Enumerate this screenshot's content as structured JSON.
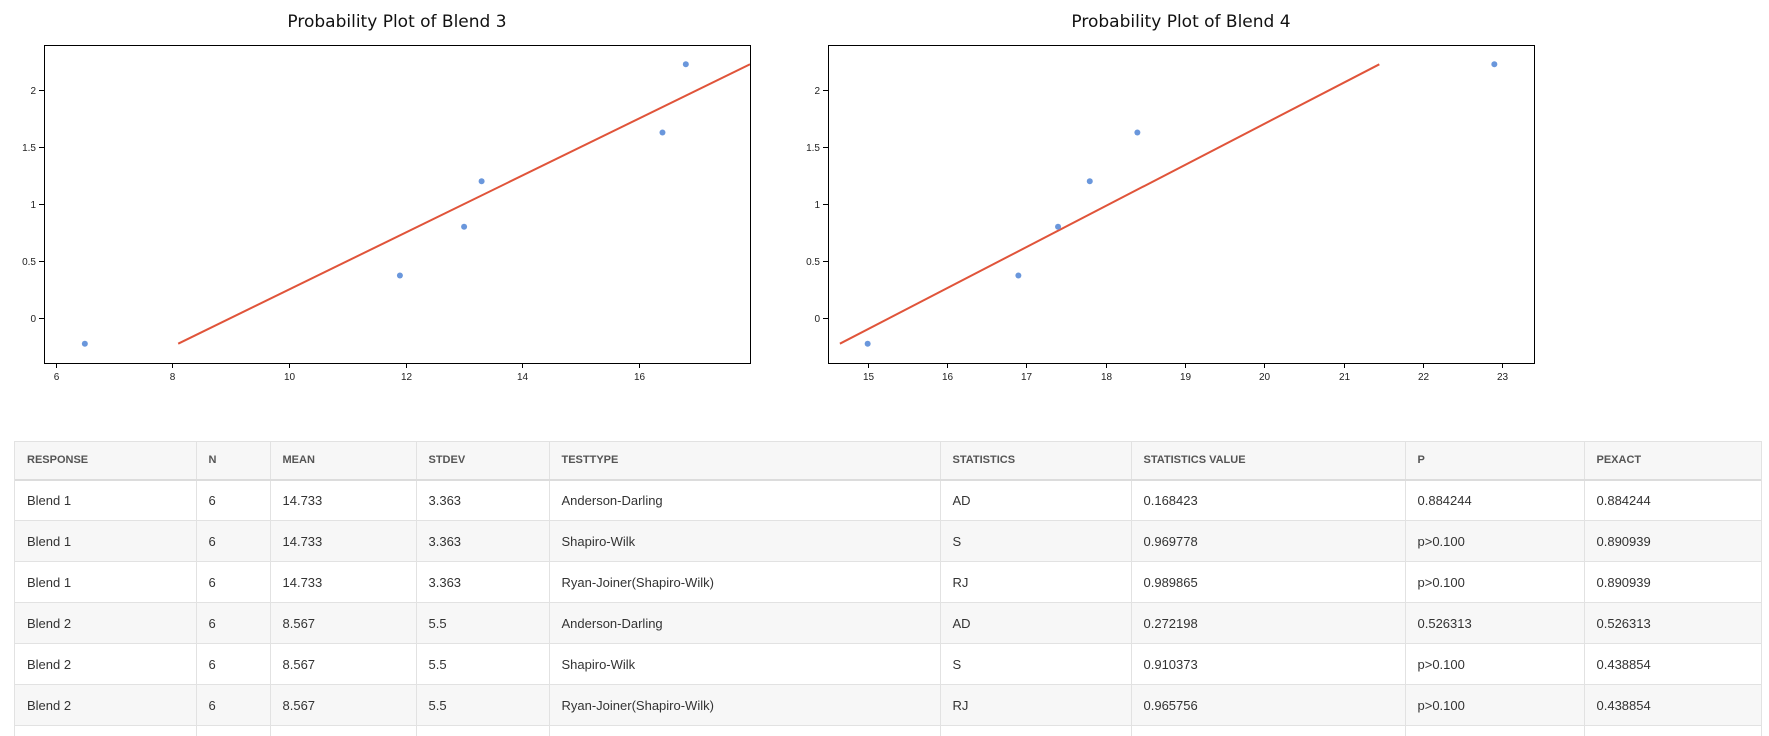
{
  "chart_data": [
    {
      "type": "scatter",
      "title": "Probability Plot of Blend 3",
      "xlabel": "",
      "ylabel": "",
      "xlim": [
        5.8,
        17.9
      ],
      "ylim": [
        -0.4,
        2.4
      ],
      "x_ticks": [
        6,
        8,
        10,
        12,
        14,
        16
      ],
      "y_ticks": [
        0,
        0.5,
        1,
        1.5,
        2
      ],
      "grid": false,
      "series": [
        {
          "x": [
            6.5,
            11.9,
            13.0,
            13.3,
            16.4,
            16.8
          ],
          "y": [
            -0.23,
            0.37,
            0.8,
            1.2,
            1.63,
            2.23
          ]
        }
      ],
      "fit_line": {
        "x": [
          8.1,
          17.9
        ],
        "y": [
          -0.23,
          2.23
        ]
      }
    },
    {
      "type": "scatter",
      "title": "Probability Plot of Blend 4",
      "xlabel": "",
      "ylabel": "",
      "xlim": [
        14.5,
        23.4
      ],
      "ylim": [
        -0.4,
        2.4
      ],
      "x_ticks": [
        15,
        16,
        17,
        18,
        19,
        20,
        21,
        22,
        23
      ],
      "y_ticks": [
        0,
        0.5,
        1,
        1.5,
        2
      ],
      "grid": false,
      "series": [
        {
          "x": [
            15.0,
            16.9,
            17.4,
            17.8,
            18.4,
            22.9
          ],
          "y": [
            -0.23,
            0.37,
            0.8,
            1.2,
            1.63,
            2.23
          ]
        }
      ],
      "fit_line": {
        "x": [
          14.65,
          21.45
        ],
        "y": [
          -0.23,
          2.23
        ]
      }
    }
  ],
  "colors": {
    "points": "#6a97dc",
    "fit_line": "#e0543a"
  },
  "table": {
    "columns": [
      "RESPONSE",
      "N",
      "MEAN",
      "STDEV",
      "TESTTYPE",
      "STATISTICS",
      "STATISTICS VALUE",
      "P",
      "PEXACT"
    ],
    "rows": [
      [
        "Blend 1",
        "6",
        "14.733",
        "3.363",
        "Anderson-Darling",
        "AD",
        "0.168423",
        "0.884244",
        "0.884244"
      ],
      [
        "Blend 1",
        "6",
        "14.733",
        "3.363",
        "Shapiro-Wilk",
        "S",
        "0.969778",
        "p>0.100",
        "0.890939"
      ],
      [
        "Blend 1",
        "6",
        "14.733",
        "3.363",
        "Ryan-Joiner(Shapiro-Wilk)",
        "RJ",
        "0.989865",
        "p>0.100",
        "0.890939"
      ],
      [
        "Blend 2",
        "6",
        "8.567",
        "5.5",
        "Anderson-Darling",
        "AD",
        "0.272198",
        "0.526313",
        "0.526313"
      ],
      [
        "Blend 2",
        "6",
        "8.567",
        "5.5",
        "Shapiro-Wilk",
        "S",
        "0.910373",
        "p>0.100",
        "0.438854"
      ],
      [
        "Blend 2",
        "6",
        "8.567",
        "5.5",
        "Ryan-Joiner(Shapiro-Wilk)",
        "RJ",
        "0.965756",
        "p>0.100",
        "0.438854"
      ],
      [
        "",
        "",
        "",
        "",
        "",
        "",
        "",
        "",
        ""
      ]
    ]
  }
}
